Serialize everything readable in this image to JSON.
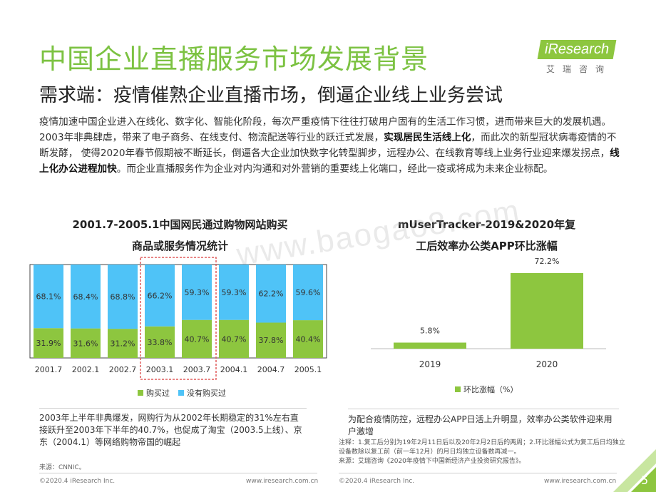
{
  "header": {
    "title": "中国企业直播服务市场发展背景",
    "subtitle": "需求端：疫情催熟企业直播市场，倒逼企业线上业务尝试"
  },
  "logo": {
    "word": "iResearch",
    "sub": "艾瑞咨询"
  },
  "paragraph": {
    "p1": "疫情加速中国企业进入在线化、数字化、智能化阶段，每次严重疫情下往往打破用户固有的生活工作习惯，进而带来巨大的发展机遇。2003年非典肆虐，带来了电子商务、在线支付、物流配送等行业的跃迁式发展，",
    "b1": "实现居民生活线上化",
    "p2": "，而此次的新型冠状病毒疫情的不断发酵， 使得2020年春节假期被不断延长，倒逼各大企业加快数字化转型脚步，远程办公、在线教育等线上业务行业迎来爆发拐点，",
    "b2": "线上化办公进程加快",
    "p3": "。而企业直播服务作为企业对内沟通和对外营销的重要线上化端口，经此一疫或将成为未来企业标配。"
  },
  "watermark": "www.baogao8.com",
  "chart_data": [
    {
      "type": "bar",
      "stacked": true,
      "title_line1": "2001.7-2005.1中国网民通过购物网站购买",
      "title_line2": "商品或服务情况统计",
      "categories": [
        "2001.7",
        "2002.1",
        "2002.7",
        "2003.1",
        "2003.7",
        "2004.1",
        "2004.7",
        "2005.1"
      ],
      "series": [
        {
          "name": "购买过",
          "values": [
            31.9,
            31.6,
            31.2,
            33.8,
            40.7,
            40.7,
            37.8,
            40.4
          ],
          "labels": [
            "31.9%",
            "31.6%",
            "31.2%",
            "33.8%",
            "40.7%",
            "40.7%",
            "37.8%",
            "40.4%"
          ],
          "color": "#8dc63f"
        },
        {
          "name": "没有购买过",
          "values": [
            68.1,
            68.4,
            68.8,
            66.2,
            59.3,
            59.3,
            62.2,
            59.6
          ],
          "labels": [
            "68.1%",
            "68.4%",
            "68.8%",
            "66.2%",
            "59.3%",
            "59.3%",
            "62.2%",
            "59.6%"
          ],
          "color": "#4fc3f7"
        }
      ],
      "ylim": [
        0,
        100
      ],
      "highlight": [
        "2003.1",
        "2003.7"
      ],
      "highlight_color": "#e05c5c",
      "legend": "bottom"
    },
    {
      "type": "bar",
      "title_line1": "mUserTracker-2019&2020年复",
      "title_line2": "工后效率办公类APP环比涨幅",
      "categories": [
        "2019",
        "2020"
      ],
      "series": [
        {
          "name": "环比涨幅（%）",
          "values": [
            5.8,
            72.2
          ],
          "labels": [
            "5.8%",
            "72.2%"
          ],
          "color": "#8dc63f"
        }
      ],
      "ylim": [
        0,
        80
      ],
      "legend": "bottom"
    }
  ],
  "notes": {
    "left": "2003年上半年非典爆发，网购行为从2002年长期稳定的31%左右直接跃升至2003年下半年的40.7%，也促成了淘宝（2003.5上线）、京东（2004.1）等网络购物帝国的崛起",
    "right": "为配合疫情防控，远程办公APP日活上升明显，效率办公类软件迎来用户激增",
    "small1": "注释：1.复工后分别为19年2月11日后以及20年2月2日后的两周；2.环比涨幅公式为复工后日均独立设备数除以复工前（前一年12月）的月日均独立设备数再减一。",
    "small2": "来源：艾瑞咨询《2020年疫情下中国新经济产业投资研究报告》。",
    "source_left": "来源：CNNIC。"
  },
  "footer": {
    "copyright": "©2020.4 iResearch Inc.",
    "url": "www.iresearch.com.cn",
    "page": "5"
  },
  "colors": {
    "accent_green": "#7cc242",
    "bar_green": "#8dc63f",
    "bar_blue": "#4fc3f7",
    "highlight_red": "#e05c5c"
  }
}
